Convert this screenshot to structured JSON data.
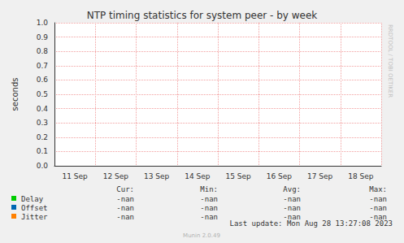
{
  "chart_data": {
    "type": "line",
    "title": "NTP timing statistics for system peer - by week",
    "ylabel": "seconds",
    "categories": [
      "11 Sep",
      "12 Sep",
      "13 Sep",
      "14 Sep",
      "15 Sep",
      "16 Sep",
      "17 Sep",
      "18 Sep"
    ],
    "series": [
      {
        "name": "Delay",
        "color": "#00cc00",
        "values": [
          null,
          null,
          null,
          null,
          null,
          null,
          null,
          null
        ],
        "stats": [
          "-nan",
          "-nan",
          "-nan",
          "-nan"
        ]
      },
      {
        "name": "Offset",
        "color": "#0066b3",
        "values": [
          null,
          null,
          null,
          null,
          null,
          null,
          null,
          null
        ],
        "stats": [
          "-nan",
          "-nan",
          "-nan",
          "-nan"
        ]
      },
      {
        "name": "Jitter",
        "color": "#ff8000",
        "values": [
          null,
          null,
          null,
          null,
          null,
          null,
          null,
          null
        ],
        "stats": [
          "-nan",
          "-nan",
          "-nan",
          "-nan"
        ]
      }
    ],
    "stat_columns": [
      "Cur:",
      "Min:",
      "Avg:",
      "Max:"
    ],
    "ylim": [
      0,
      1
    ],
    "yticks": [
      {
        "value": 0,
        "label": "0.0"
      },
      0.1,
      0.2,
      0.3,
      0.4,
      0.5,
      0.6,
      0.7,
      0.8,
      0.9,
      {
        "value": 1,
        "label": "1.0"
      }
    ],
    "grid": true,
    "footer": "Last update: Mon Aug 28 13:27:08 2023",
    "credit": "Munin 2.0.49",
    "side_text": "RRDTOOL / TOBI OETIKER"
  }
}
